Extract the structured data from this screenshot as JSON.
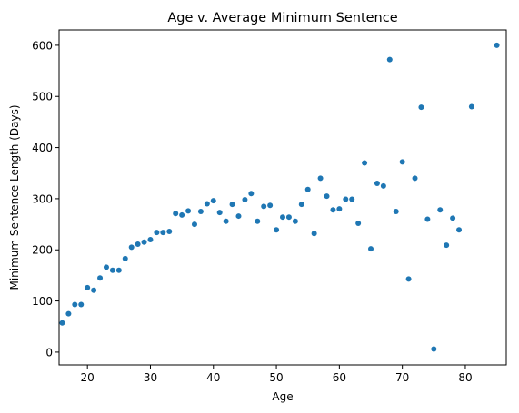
{
  "chart_data": {
    "type": "scatter",
    "title": "Age v. Average Minimum Sentence",
    "xlabel": "Age",
    "ylabel": "Minimum Sentence Length (Days)",
    "xlim": [
      15.5,
      86.5
    ],
    "ylim": [
      -25,
      630
    ],
    "xticks": [
      20,
      30,
      40,
      50,
      60,
      70,
      80
    ],
    "yticks": [
      0,
      100,
      200,
      300,
      400,
      500,
      600
    ],
    "grid": false,
    "legend": "none",
    "color": "#1f77b4",
    "points": [
      {
        "x": 16,
        "y": 57
      },
      {
        "x": 17,
        "y": 75
      },
      {
        "x": 18,
        "y": 93
      },
      {
        "x": 19,
        "y": 93
      },
      {
        "x": 20,
        "y": 126
      },
      {
        "x": 21,
        "y": 121
      },
      {
        "x": 22,
        "y": 145
      },
      {
        "x": 23,
        "y": 166
      },
      {
        "x": 24,
        "y": 160
      },
      {
        "x": 25,
        "y": 160
      },
      {
        "x": 26,
        "y": 183
      },
      {
        "x": 27,
        "y": 205
      },
      {
        "x": 28,
        "y": 211
      },
      {
        "x": 29,
        "y": 215
      },
      {
        "x": 30,
        "y": 220
      },
      {
        "x": 31,
        "y": 234
      },
      {
        "x": 32,
        "y": 234
      },
      {
        "x": 33,
        "y": 236
      },
      {
        "x": 34,
        "y": 271
      },
      {
        "x": 35,
        "y": 268
      },
      {
        "x": 36,
        "y": 276
      },
      {
        "x": 37,
        "y": 250
      },
      {
        "x": 38,
        "y": 275
      },
      {
        "x": 39,
        "y": 290
      },
      {
        "x": 40,
        "y": 296
      },
      {
        "x": 41,
        "y": 273
      },
      {
        "x": 42,
        "y": 256
      },
      {
        "x": 43,
        "y": 289
      },
      {
        "x": 44,
        "y": 266
      },
      {
        "x": 45,
        "y": 298
      },
      {
        "x": 46,
        "y": 310
      },
      {
        "x": 47,
        "y": 256
      },
      {
        "x": 48,
        "y": 285
      },
      {
        "x": 49,
        "y": 287
      },
      {
        "x": 50,
        "y": 239
      },
      {
        "x": 51,
        "y": 264
      },
      {
        "x": 52,
        "y": 264
      },
      {
        "x": 53,
        "y": 256
      },
      {
        "x": 54,
        "y": 289
      },
      {
        "x": 55,
        "y": 318
      },
      {
        "x": 56,
        "y": 232
      },
      {
        "x": 57,
        "y": 340
      },
      {
        "x": 58,
        "y": 305
      },
      {
        "x": 59,
        "y": 278
      },
      {
        "x": 60,
        "y": 280
      },
      {
        "x": 61,
        "y": 299
      },
      {
        "x": 62,
        "y": 299
      },
      {
        "x": 63,
        "y": 252
      },
      {
        "x": 64,
        "y": 370
      },
      {
        "x": 65,
        "y": 202
      },
      {
        "x": 66,
        "y": 330
      },
      {
        "x": 67,
        "y": 325
      },
      {
        "x": 68,
        "y": 572
      },
      {
        "x": 69,
        "y": 275
      },
      {
        "x": 70,
        "y": 372
      },
      {
        "x": 71,
        "y": 143
      },
      {
        "x": 72,
        "y": 340
      },
      {
        "x": 73,
        "y": 479
      },
      {
        "x": 74,
        "y": 260
      },
      {
        "x": 75,
        "y": 6
      },
      {
        "x": 76,
        "y": 278
      },
      {
        "x": 77,
        "y": 209
      },
      {
        "x": 78,
        "y": 262
      },
      {
        "x": 79,
        "y": 239
      },
      {
        "x": 81,
        "y": 480
      },
      {
        "x": 85,
        "y": 600
      }
    ]
  }
}
